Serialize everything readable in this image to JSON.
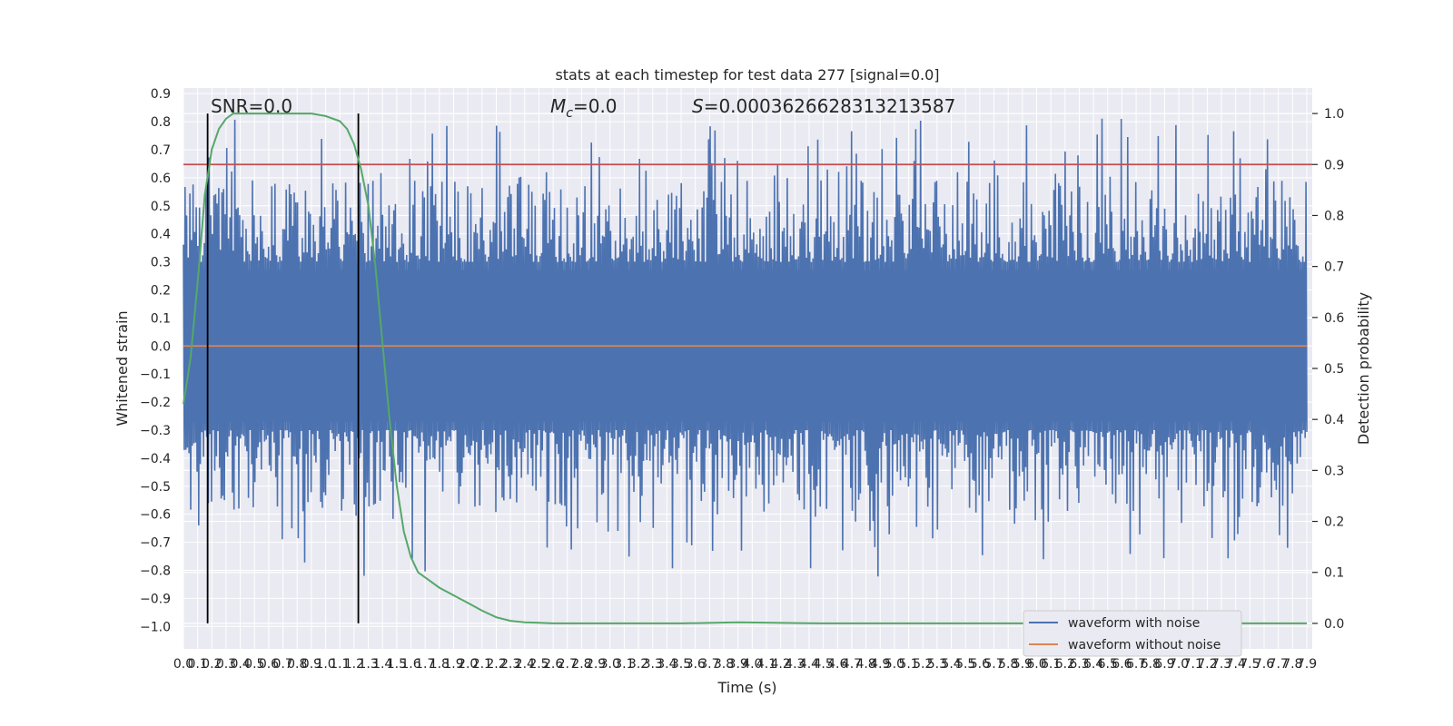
{
  "chart_data": {
    "type": "line",
    "title": "stats at each timestep for test data 277 [signal=0.0]",
    "xlabel": "Time (s)",
    "ylabel": "Whitened strain",
    "y2label": "Detection probability",
    "xlim": [
      0.0,
      7.9
    ],
    "ylim": [
      -1.08,
      0.92
    ],
    "y2lim": [
      -0.05,
      1.05
    ],
    "x_ticks": [
      "0.0",
      "0.1",
      "0.2",
      "0.3",
      "0.4",
      "0.5",
      "0.6",
      "0.7",
      "0.8",
      "0.9",
      "1.0",
      "1.1",
      "1.2",
      "1.3",
      "1.4",
      "1.5",
      "1.6",
      "1.7",
      "1.8",
      "1.9",
      "2.0",
      "2.1",
      "2.2",
      "2.3",
      "2.4",
      "2.5",
      "2.6",
      "2.7",
      "2.8",
      "2.9",
      "3.0",
      "3.1",
      "3.2",
      "3.3",
      "3.4",
      "3.5",
      "3.6",
      "3.7",
      "3.8",
      "3.9",
      "4.0",
      "4.1",
      "4.2",
      "4.3",
      "4.4",
      "4.5",
      "4.6",
      "4.7",
      "4.8",
      "4.9",
      "5.0",
      "5.1",
      "5.2",
      "5.3",
      "5.4",
      "5.5",
      "5.6",
      "5.7",
      "5.8",
      "5.9",
      "6.0",
      "6.1",
      "6.2",
      "6.3",
      "6.4",
      "6.5",
      "6.6",
      "6.7",
      "6.8",
      "6.9",
      "7.0",
      "7.1",
      "7.2",
      "7.3",
      "7.4",
      "7.5",
      "7.6",
      "7.7",
      "7.8",
      "7.9"
    ],
    "y_ticks": [
      "0.9",
      "0.8",
      "0.7",
      "0.6",
      "0.5",
      "0.4",
      "0.3",
      "0.2",
      "0.1",
      "0.0",
      "-0.1",
      "-0.2",
      "-0.3",
      "-0.4",
      "-0.5",
      "-0.6",
      "-0.7",
      "-0.8",
      "-0.9",
      "-1.0"
    ],
    "y2_ticks": [
      "1.0",
      "0.9",
      "0.8",
      "0.7",
      "0.6",
      "0.5",
      "0.4",
      "0.3",
      "0.2",
      "0.1",
      "0.0"
    ],
    "annotations": [
      {
        "text": "SNR=0.0",
        "x": 0.18,
        "y": 0.83
      },
      {
        "text": "Mc=0.0",
        "x": 2.6,
        "y": 0.83
      },
      {
        "text": "S=0.0003626628313213587",
        "x": 3.6,
        "y": 0.83
      }
    ],
    "threshold_line": {
      "y": 0.9,
      "axis": "y2",
      "color": "#c44e52"
    },
    "vertical_lines": [
      0.17,
      1.23
    ],
    "legend": {
      "placement": "lower-right",
      "entries": [
        "waveform with noise",
        "waveform without noise"
      ]
    },
    "grid": true,
    "series": [
      {
        "name": "waveform with noise",
        "color": "#4c72b0",
        "axis": "y",
        "envelope_typical": 0.3,
        "envelope_peak": 0.83,
        "x_range": [
          0.0,
          7.9
        ]
      },
      {
        "name": "waveform without noise",
        "color": "#dd8452",
        "axis": "y",
        "x": [
          0.0,
          7.9
        ],
        "values": [
          0.0,
          0.0
        ]
      },
      {
        "name": "Detection probability",
        "color": "#55a868",
        "axis": "y2",
        "x": [
          0.0,
          0.05,
          0.1,
          0.15,
          0.2,
          0.25,
          0.3,
          0.35,
          0.4,
          0.5,
          0.6,
          0.7,
          0.8,
          0.9,
          1.0,
          1.1,
          1.15,
          1.2,
          1.25,
          1.3,
          1.35,
          1.4,
          1.45,
          1.5,
          1.55,
          1.6,
          1.65,
          1.7,
          1.8,
          1.9,
          2.0,
          2.1,
          2.2,
          2.3,
          2.4,
          2.5,
          2.6,
          2.8,
          3.0,
          3.5,
          3.9,
          4.5,
          5.0,
          6.0,
          7.0,
          7.9
        ],
        "values": [
          0.43,
          0.52,
          0.67,
          0.84,
          0.93,
          0.97,
          0.99,
          1.0,
          1.0,
          1.0,
          1.0,
          1.0,
          1.0,
          1.0,
          0.995,
          0.985,
          0.97,
          0.94,
          0.89,
          0.82,
          0.7,
          0.55,
          0.4,
          0.27,
          0.18,
          0.13,
          0.1,
          0.09,
          0.07,
          0.055,
          0.04,
          0.025,
          0.012,
          0.005,
          0.002,
          0.001,
          0.0,
          0.0,
          0.0,
          0.0,
          0.002,
          0.0,
          0.0,
          0.0,
          0.0,
          0.0
        ]
      }
    ]
  }
}
